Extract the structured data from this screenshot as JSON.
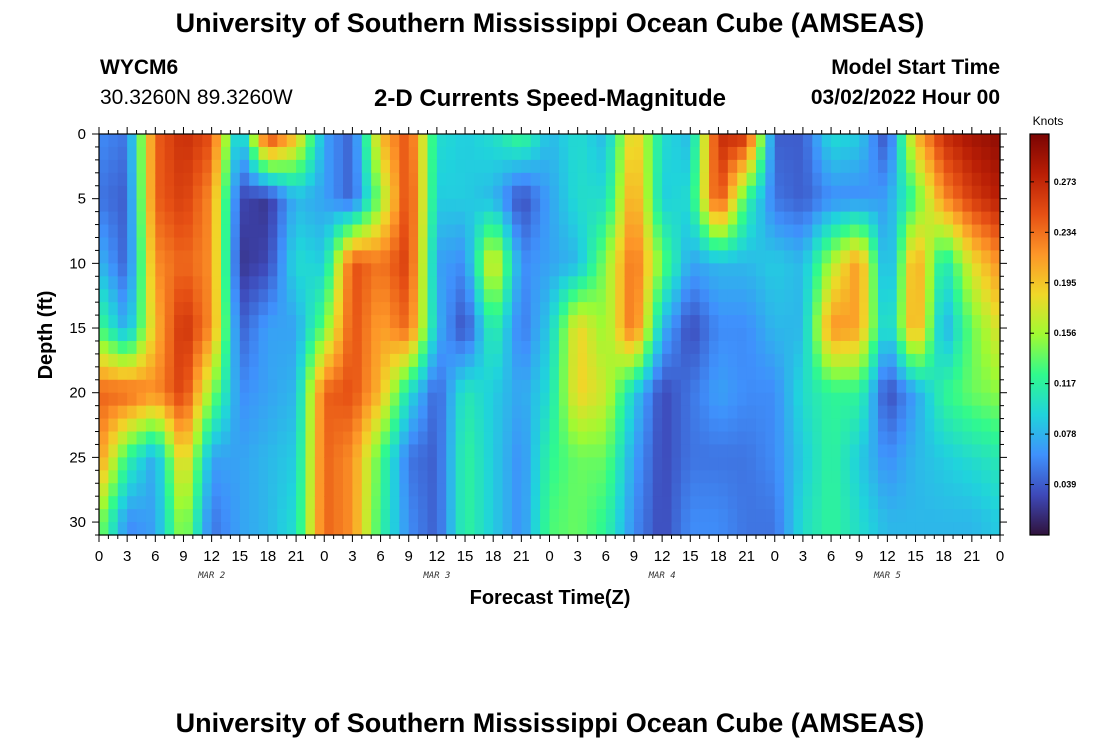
{
  "header": {
    "title": "University of Southern Mississippi Ocean Cube (AMSEAS)",
    "station_id": "WYCM6",
    "station_coords": "30.3260N  89.3260W",
    "plot_title": "2-D Currents Speed-Magnitude",
    "model_start_label": "Model Start Time",
    "model_start_value": "03/02/2022 Hour 00"
  },
  "footer": {
    "title": "University of Southern Mississippi Ocean Cube (AMSEAS)"
  },
  "chart_data": {
    "type": "heatmap",
    "title": "2-D Currents Speed-Magnitude",
    "xlabel": "Forecast Time(Z)",
    "ylabel": "Depth (ft)",
    "x_tick_labels": [
      "0",
      "3",
      "6",
      "9",
      "12",
      "15",
      "18",
      "21",
      "0",
      "3",
      "6",
      "9",
      "12",
      "15",
      "18",
      "21",
      "0",
      "3",
      "6",
      "9",
      "12",
      "15",
      "18",
      "21",
      "0",
      "3",
      "6",
      "9",
      "12",
      "15",
      "18",
      "21",
      "0"
    ],
    "x_range_hours": [
      0,
      96
    ],
    "day_labels": [
      {
        "label": "MAR 2",
        "hour": 12
      },
      {
        "label": "MAR 3",
        "hour": 36
      },
      {
        "label": "MAR 4",
        "hour": 60
      },
      {
        "label": "MAR 5",
        "hour": 84
      }
    ],
    "y_tick_labels": [
      "0",
      "5",
      "10",
      "15",
      "20",
      "25",
      "30"
    ],
    "y_ticks": [
      0,
      5,
      10,
      15,
      20,
      25,
      30
    ],
    "ylim": [
      0,
      31
    ],
    "y_inverted": true,
    "colorbar": {
      "unit": "Knots",
      "ticks": [
        "0.273",
        "0.234",
        "0.195",
        "0.156",
        "0.117",
        "0.078",
        "0.039"
      ],
      "tick_values": [
        0.273,
        0.234,
        0.195,
        0.156,
        0.117,
        0.078,
        0.039
      ],
      "range": [
        0.0,
        0.31
      ],
      "colormap": "turbo"
    },
    "speed_grid": {
      "x_hours": [
        0,
        3,
        6,
        9,
        12,
        15,
        18,
        21,
        24,
        27,
        30,
        33,
        36,
        39,
        42,
        45,
        48,
        51,
        54,
        57,
        60,
        63,
        66,
        69,
        72,
        75,
        78,
        81,
        84,
        87,
        90,
        93,
        96
      ],
      "depths_ft": [
        0,
        5,
        10,
        15,
        20,
        25,
        30
      ],
      "rows": [
        [
          0.06,
          0.05,
          0.24,
          0.27,
          0.25,
          0.07,
          0.27,
          0.2,
          0.07,
          0.04,
          0.2,
          0.25,
          0.1,
          0.09,
          0.1,
          0.13,
          0.08,
          0.1,
          0.08,
          0.2,
          0.1,
          0.08,
          0.27,
          0.27,
          0.04,
          0.04,
          0.1,
          0.09,
          0.03,
          0.2,
          0.27,
          0.29,
          0.3
        ],
        [
          0.05,
          0.04,
          0.24,
          0.26,
          0.22,
          0.03,
          0.02,
          0.08,
          0.07,
          0.04,
          0.15,
          0.26,
          0.09,
          0.09,
          0.08,
          0.03,
          0.07,
          0.1,
          0.1,
          0.22,
          0.09,
          0.1,
          0.26,
          0.12,
          0.05,
          0.04,
          0.06,
          0.06,
          0.07,
          0.13,
          0.22,
          0.26,
          0.28
        ],
        [
          0.08,
          0.04,
          0.22,
          0.24,
          0.22,
          0.02,
          0.03,
          0.1,
          0.09,
          0.25,
          0.23,
          0.26,
          0.07,
          0.06,
          0.19,
          0.06,
          0.07,
          0.08,
          0.15,
          0.24,
          0.14,
          0.07,
          0.08,
          0.08,
          0.09,
          0.08,
          0.16,
          0.22,
          0.06,
          0.22,
          0.1,
          0.18,
          0.22
        ],
        [
          0.13,
          0.07,
          0.2,
          0.27,
          0.22,
          0.04,
          0.07,
          0.07,
          0.14,
          0.25,
          0.21,
          0.24,
          0.08,
          0.03,
          0.12,
          0.05,
          0.09,
          0.19,
          0.15,
          0.24,
          0.08,
          0.03,
          0.06,
          0.06,
          0.08,
          0.08,
          0.22,
          0.21,
          0.08,
          0.22,
          0.07,
          0.14,
          0.18
        ],
        [
          0.24,
          0.24,
          0.22,
          0.26,
          0.15,
          0.06,
          0.07,
          0.08,
          0.24,
          0.25,
          0.2,
          0.1,
          0.04,
          0.11,
          0.09,
          0.07,
          0.1,
          0.19,
          0.17,
          0.09,
          0.03,
          0.05,
          0.07,
          0.06,
          0.06,
          0.1,
          0.12,
          0.12,
          0.03,
          0.07,
          0.12,
          0.14,
          0.15
        ],
        [
          0.22,
          0.12,
          0.07,
          0.2,
          0.07,
          0.07,
          0.08,
          0.09,
          0.24,
          0.22,
          0.13,
          0.05,
          0.04,
          0.12,
          0.09,
          0.06,
          0.12,
          0.14,
          0.14,
          0.07,
          0.03,
          0.05,
          0.05,
          0.05,
          0.06,
          0.09,
          0.12,
          0.09,
          0.06,
          0.08,
          0.09,
          0.1,
          0.11
        ],
        [
          0.15,
          0.06,
          0.07,
          0.16,
          0.05,
          0.07,
          0.08,
          0.1,
          0.24,
          0.22,
          0.12,
          0.06,
          0.04,
          0.12,
          0.09,
          0.06,
          0.13,
          0.14,
          0.12,
          0.06,
          0.03,
          0.06,
          0.06,
          0.05,
          0.05,
          0.1,
          0.12,
          0.1,
          0.08,
          0.08,
          0.08,
          0.08,
          0.09
        ]
      ]
    }
  }
}
